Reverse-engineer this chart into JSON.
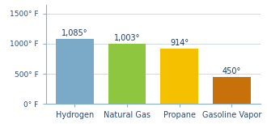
{
  "categories": [
    "Hydrogen",
    "Natural Gas",
    "Propane",
    "Gasoline Vapor"
  ],
  "values": [
    1085,
    1003,
    914,
    450
  ],
  "labels": [
    "1,085°",
    "1,003°",
    "914°",
    "450°"
  ],
  "bar_colors": [
    "#7aaac8",
    "#8ec63f",
    "#f5c000",
    "#c8700a"
  ],
  "yticks": [
    0,
    500,
    1000,
    1500
  ],
  "ytick_labels": [
    "0° F",
    "500° F",
    "1000° F",
    "1500° F"
  ],
  "ylim": [
    0,
    1650
  ],
  "label_color": "#1a3a6b",
  "axis_color": "#8ab0c8",
  "tick_color": "#2a4a7a",
  "background_color": "#ffffff",
  "label_fontsize": 7.0,
  "tick_fontsize": 6.5,
  "cat_fontsize": 7.0
}
